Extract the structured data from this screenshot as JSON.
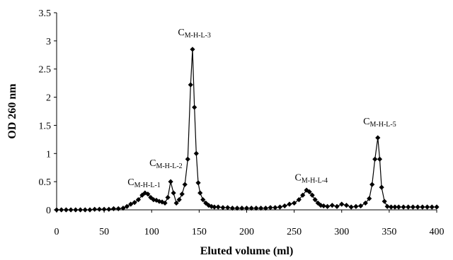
{
  "chart_data": {
    "type": "line",
    "title": "",
    "xlabel": "Eluted volume (ml)",
    "ylabel": "OD 260 nm",
    "xlim": [
      0,
      400
    ],
    "ylim": [
      0,
      3.5
    ],
    "xticks": [
      "0",
      "50",
      "100",
      "150",
      "200",
      "250",
      "300",
      "350",
      "400"
    ],
    "yticks": [
      "0",
      "0.5",
      "1",
      "1.5",
      "2",
      "2.5",
      "3",
      "3.5"
    ],
    "grid": false,
    "marker": "diamond",
    "color": "#000000",
    "series": [
      {
        "x": [
          0,
          5,
          10,
          15,
          20,
          25,
          30,
          35,
          40,
          45,
          50,
          55,
          60,
          65,
          70,
          74,
          78,
          82,
          86,
          90,
          93,
          96,
          99,
          102,
          105,
          108,
          111,
          114,
          117,
          120,
          123,
          126,
          129,
          132,
          135,
          138,
          141,
          143,
          145,
          147,
          149,
          151,
          154,
          157,
          160,
          163,
          166,
          170,
          175,
          180,
          185,
          190,
          195,
          200,
          205,
          210,
          215,
          220,
          225,
          230,
          235,
          240,
          245,
          250,
          255,
          259,
          263,
          266,
          269,
          272,
          275,
          278,
          281,
          285,
          290,
          295,
          300,
          305,
          310,
          315,
          320,
          325,
          329,
          332,
          335,
          338,
          340,
          342,
          345,
          348,
          352,
          356,
          360,
          365,
          370,
          375,
          380,
          385,
          390,
          395,
          400
        ],
        "y": [
          0,
          0,
          0,
          0,
          0,
          0,
          0,
          0,
          0.01,
          0.01,
          0.01,
          0.01,
          0.02,
          0.02,
          0.03,
          0.06,
          0.1,
          0.13,
          0.18,
          0.26,
          0.3,
          0.28,
          0.22,
          0.18,
          0.17,
          0.15,
          0.14,
          0.12,
          0.22,
          0.5,
          0.3,
          0.12,
          0.18,
          0.28,
          0.45,
          0.9,
          2.22,
          2.85,
          1.82,
          1.0,
          0.48,
          0.3,
          0.18,
          0.12,
          0.08,
          0.06,
          0.05,
          0.05,
          0.04,
          0.04,
          0.03,
          0.03,
          0.03,
          0.03,
          0.03,
          0.03,
          0.03,
          0.03,
          0.04,
          0.04,
          0.05,
          0.07,
          0.1,
          0.12,
          0.18,
          0.26,
          0.35,
          0.32,
          0.26,
          0.18,
          0.12,
          0.08,
          0.07,
          0.06,
          0.08,
          0.06,
          0.1,
          0.08,
          0.05,
          0.06,
          0.07,
          0.12,
          0.2,
          0.45,
          0.9,
          1.28,
          0.9,
          0.4,
          0.15,
          0.06,
          0.05,
          0.05,
          0.05,
          0.05,
          0.05,
          0.05,
          0.05,
          0.05,
          0.05,
          0.05,
          0.05
        ]
      }
    ],
    "annotations": [
      {
        "main": "C",
        "sub": "M-H-L-1",
        "x": 92,
        "y": 0.44
      },
      {
        "main": "C",
        "sub": "M-H-L-2",
        "x": 115,
        "y": 0.78
      },
      {
        "main": "C",
        "sub": "M-H-L-3",
        "x": 145,
        "y": 3.1
      },
      {
        "main": "C",
        "sub": "M-H-L-4",
        "x": 268,
        "y": 0.52
      },
      {
        "main": "C",
        "sub": "M-H-L-5",
        "x": 340,
        "y": 1.52
      }
    ]
  }
}
